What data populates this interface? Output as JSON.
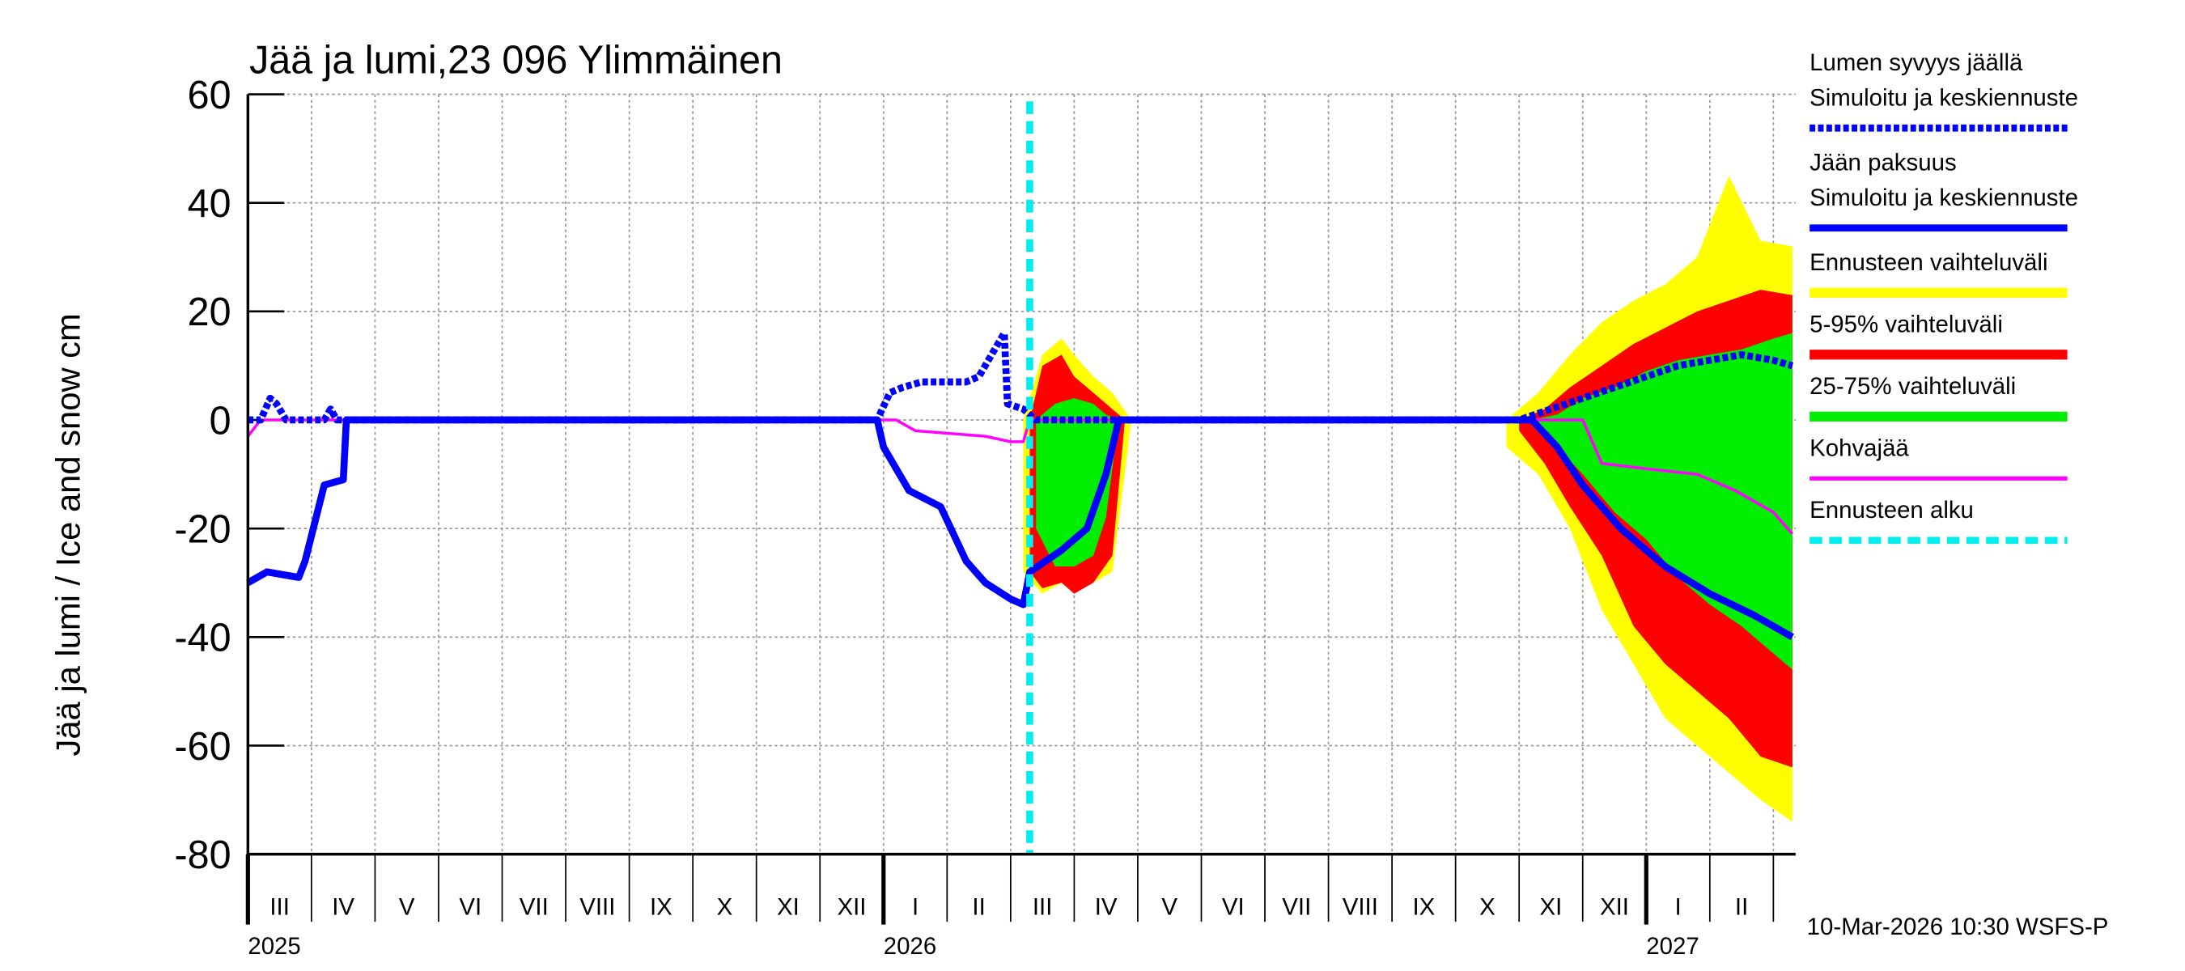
{
  "chart_data": {
    "type": "line",
    "title": "Jää ja lumi,23 096 Ylimmäinen",
    "y_label": "Jää ja lumi / Ice and snow    cm",
    "footer": "10-Mar-2026 10:30 WSFS-P",
    "ylim": [
      -80,
      60
    ],
    "yticks": [
      -80,
      -60,
      -40,
      -20,
      0,
      20,
      40,
      60
    ],
    "xlim": [
      0,
      24.35
    ],
    "xticks": [
      0,
      1,
      2,
      3,
      4,
      5,
      6,
      7,
      8,
      9,
      10,
      11,
      12,
      13,
      14,
      15,
      16,
      17,
      18,
      19,
      20,
      21,
      22,
      23,
      24
    ],
    "month_labels": [
      "III",
      "IV",
      "V",
      "VI",
      "VII",
      "VIII",
      "IX",
      "X",
      "XI",
      "XII",
      "I",
      "II",
      "III",
      "IV",
      "V",
      "VI",
      "VII",
      "VIII",
      "IX",
      "X",
      "XI",
      "XII",
      "I",
      "II"
    ],
    "year_ticks": [
      0,
      10,
      22
    ],
    "year_labels": [
      "2025",
      "2026",
      "2027"
    ],
    "grid": true,
    "series": [
      {
        "name": "Lumen syvyys jäällä",
        "legend_note": "Simuloitu ja keskiennuste",
        "color": "#0000ff",
        "style": "dotted",
        "x": [
          0,
          0.2,
          0.35,
          0.45,
          0.6,
          1.2,
          1.3,
          1.4,
          1.55,
          9.9,
          10.1,
          10.3,
          10.6,
          11.0,
          11.3,
          11.5,
          11.7,
          11.9,
          11.95,
          12.2,
          12.4,
          20.0,
          20.5,
          21.0,
          21.5,
          22.0,
          22.5,
          23.0,
          23.5,
          24.0,
          24.3
        ],
        "values": [
          0,
          0,
          4,
          3,
          0,
          0,
          2,
          0,
          0,
          0,
          5,
          6,
          7,
          7,
          7,
          8,
          12,
          16,
          3,
          2,
          0,
          0,
          2,
          4,
          6,
          8,
          10,
          11,
          12,
          11,
          10
        ]
      },
      {
        "name": "Jään paksuus",
        "legend_note": "Simuloitu ja keskiennuste",
        "color": "#0000ff",
        "style": "solid",
        "x": [
          0,
          0.3,
          0.8,
          0.9,
          1.2,
          1.5,
          1.55,
          9.9,
          10.0,
          10.4,
          10.9,
          11.3,
          11.6,
          12.0,
          12.2,
          12.3,
          12.8,
          13.2,
          13.5,
          13.7,
          20.2,
          20.6,
          21.0,
          21.6,
          22.3,
          23.0,
          23.7,
          24.3
        ],
        "values": [
          -30,
          -28,
          -29,
          -26,
          -12,
          -11,
          0,
          0,
          -5,
          -13,
          -16,
          -26,
          -30,
          -33,
          -34,
          -28,
          -24,
          -20,
          -10,
          0,
          0,
          -5,
          -12,
          -20,
          -27,
          -32,
          -36,
          -40
        ]
      },
      {
        "name": "Kohvajää",
        "color": "#ff00ff",
        "style": "thin",
        "x": [
          0,
          0.2,
          10.2,
          10.5,
          11.6,
          12.0,
          12.2,
          12.3,
          21.0,
          21.3,
          22.0,
          22.8,
          23.4,
          24.0,
          24.3
        ],
        "values": [
          -3,
          0,
          0,
          -2,
          -3,
          -4,
          -4,
          0,
          0,
          -8,
          -9,
          -10,
          -13,
          -17,
          -21
        ]
      }
    ],
    "bands": [
      {
        "name": "Ennusteen vaihteluväli",
        "color": "#ffff00",
        "x": [
          12.2,
          12.5,
          12.8,
          13.0,
          13.3,
          13.6,
          13.9,
          null,
          19.8,
          20.3,
          20.8,
          21.3,
          21.8,
          22.3,
          22.8,
          23.3,
          23.8,
          24.3
        ],
        "upper": [
          0,
          12,
          15,
          12,
          8,
          5,
          0,
          null,
          0,
          5,
          12,
          18,
          22,
          25,
          30,
          45,
          33,
          32
        ],
        "lower": [
          -28,
          -32,
          -30,
          -31,
          -30,
          -28,
          0,
          null,
          -5,
          -10,
          -20,
          -35,
          -45,
          -55,
          -60,
          -65,
          -70,
          -74
        ]
      },
      {
        "name": "5-95% vaihteluväli",
        "color": "#ff0000",
        "x": [
          12.3,
          12.5,
          12.8,
          13.0,
          13.3,
          13.6,
          13.8,
          null,
          20.0,
          20.4,
          20.8,
          21.3,
          21.8,
          22.3,
          22.8,
          23.3,
          23.8,
          24.3
        ],
        "upper": [
          0,
          10,
          12,
          8,
          5,
          2,
          0,
          null,
          0,
          2,
          6,
          10,
          14,
          17,
          20,
          22,
          24,
          23
        ],
        "lower": [
          -28,
          -31,
          -30,
          -32,
          -30,
          -25,
          0,
          null,
          -2,
          -8,
          -16,
          -25,
          -38,
          -45,
          -50,
          -55,
          -62,
          -64
        ]
      },
      {
        "name": "25-75% vaihteluväli",
        "color": "#00ee00",
        "x": [
          12.4,
          12.7,
          13.0,
          13.3,
          13.5,
          13.7,
          null,
          20.2,
          20.6,
          21.0,
          21.5,
          22.0,
          22.5,
          23.0,
          23.5,
          24.0,
          24.3
        ],
        "upper": [
          0,
          3,
          4,
          3,
          1,
          0,
          null,
          0,
          1,
          4,
          6,
          9,
          11,
          12,
          13,
          15,
          16
        ],
        "lower": [
          -20,
          -27,
          -27,
          -25,
          -18,
          0,
          null,
          -1,
          -5,
          -10,
          -17,
          -22,
          -29,
          -34,
          -38,
          -43,
          -46
        ]
      }
    ],
    "forecast_start": {
      "label": "Ennusteen alku",
      "x": 12.3,
      "color": "#00eeee"
    }
  }
}
